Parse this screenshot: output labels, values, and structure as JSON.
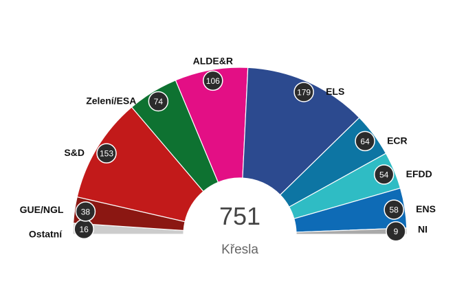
{
  "chart_data": {
    "type": "parliament",
    "total": "751",
    "total_label": "Křesla",
    "series": [
      {
        "name": "Ostatní",
        "value": 16,
        "color": "#cccccc"
      },
      {
        "name": "GUE/NGL",
        "value": 38,
        "color": "#8b1712"
      },
      {
        "name": "S&D",
        "value": 153,
        "color": "#c21a1a"
      },
      {
        "name": "Zelení/ESA",
        "value": 74,
        "color": "#0e7231"
      },
      {
        "name": "ALDE&R",
        "value": 106,
        "color": "#e30f85"
      },
      {
        "name": "ELS",
        "value": 179,
        "color": "#2c4a8f"
      },
      {
        "name": "ECR",
        "value": 64,
        "color": "#0d75a3"
      },
      {
        "name": "EFDD",
        "value": 54,
        "color": "#2fbcc4"
      },
      {
        "name": "ENS",
        "value": 58,
        "color": "#0e6bb6"
      },
      {
        "name": "NI",
        "value": 9,
        "color": "#aaaaaa"
      }
    ]
  },
  "colors": {
    "badge_bg": "#2b2b2b",
    "badge_text": "#ffffff",
    "total_text": "#444444",
    "total_label_text": "#666666"
  }
}
